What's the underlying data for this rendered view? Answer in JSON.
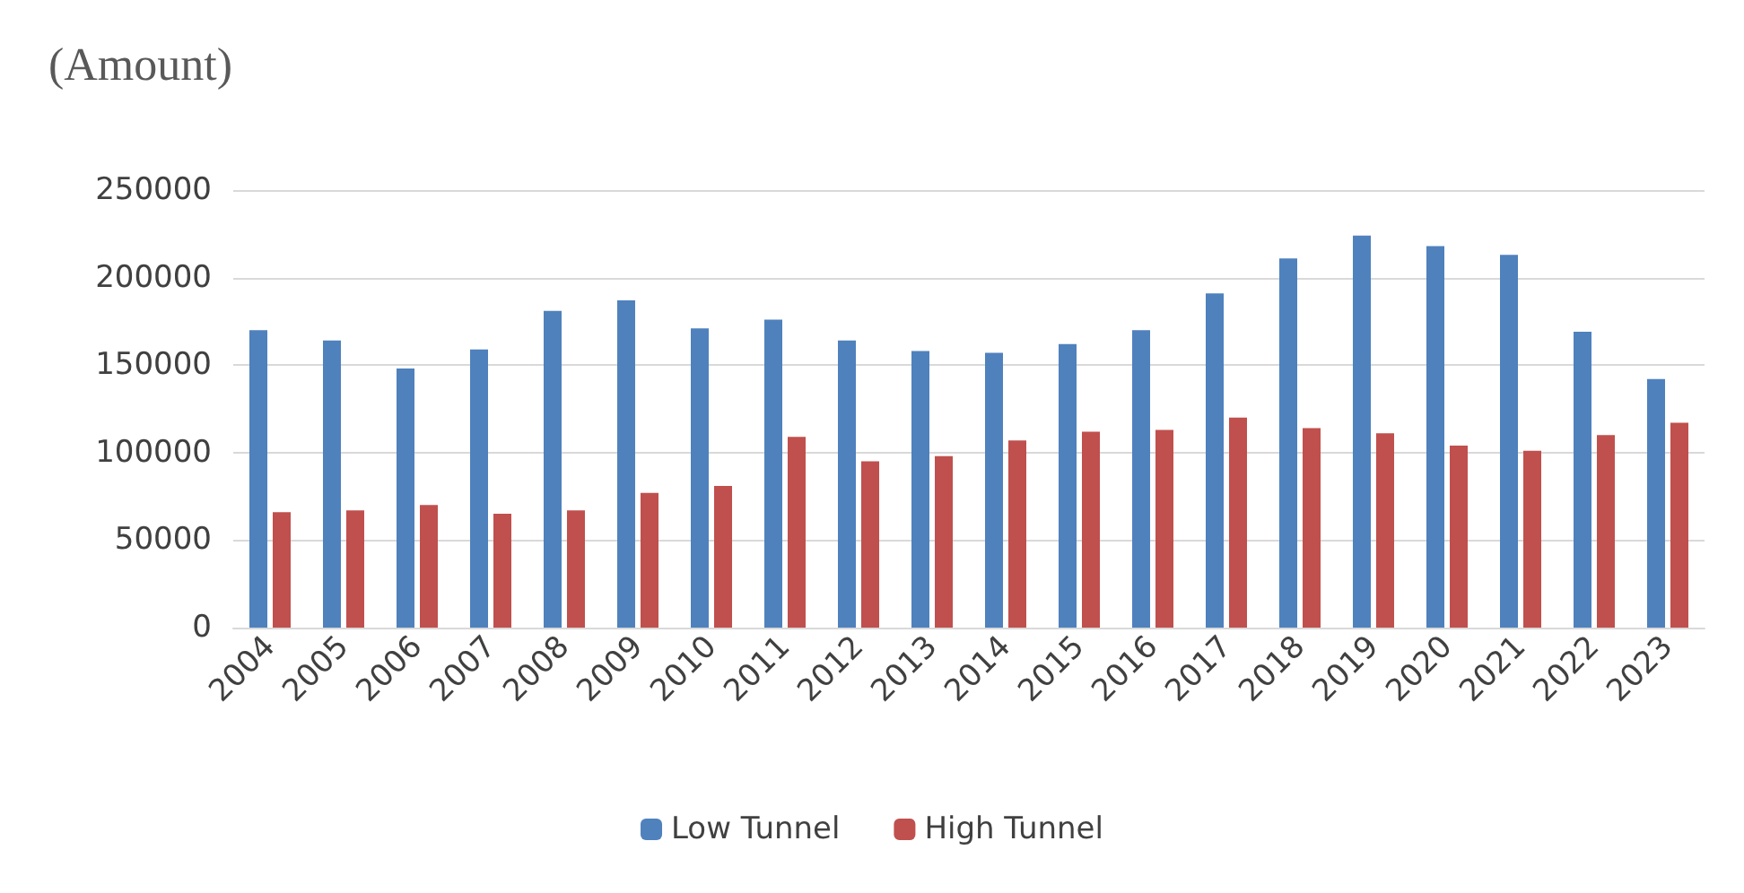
{
  "chart_data": {
    "type": "bar",
    "ylabel": "(Amount)",
    "categories": [
      "2004",
      "2005",
      "2006",
      "2007",
      "2008",
      "2009",
      "2010",
      "2011",
      "2012",
      "2013",
      "2014",
      "2015",
      "2016",
      "2017",
      "2018",
      "2019",
      "2020",
      "2021",
      "2022",
      "2023"
    ],
    "series": [
      {
        "name": "Low Tunnel",
        "color": "#4f81bd",
        "values": [
          170000,
          164000,
          148000,
          159000,
          181000,
          187000,
          171000,
          176000,
          164000,
          158000,
          157000,
          162000,
          170000,
          191000,
          211000,
          224000,
          218000,
          213000,
          169000,
          142000
        ]
      },
      {
        "name": "High Tunnel",
        "color": "#c0504d",
        "values": [
          66000,
          67000,
          70000,
          65000,
          67000,
          77000,
          81000,
          109000,
          95000,
          98000,
          107000,
          112000,
          113000,
          120000,
          114000,
          111000,
          104000,
          101000,
          110000,
          117000
        ]
      }
    ],
    "ylim": [
      0,
      250000
    ],
    "yticks": [
      0,
      50000,
      100000,
      150000,
      200000,
      250000
    ],
    "grid": "y",
    "legend": "bottom"
  }
}
